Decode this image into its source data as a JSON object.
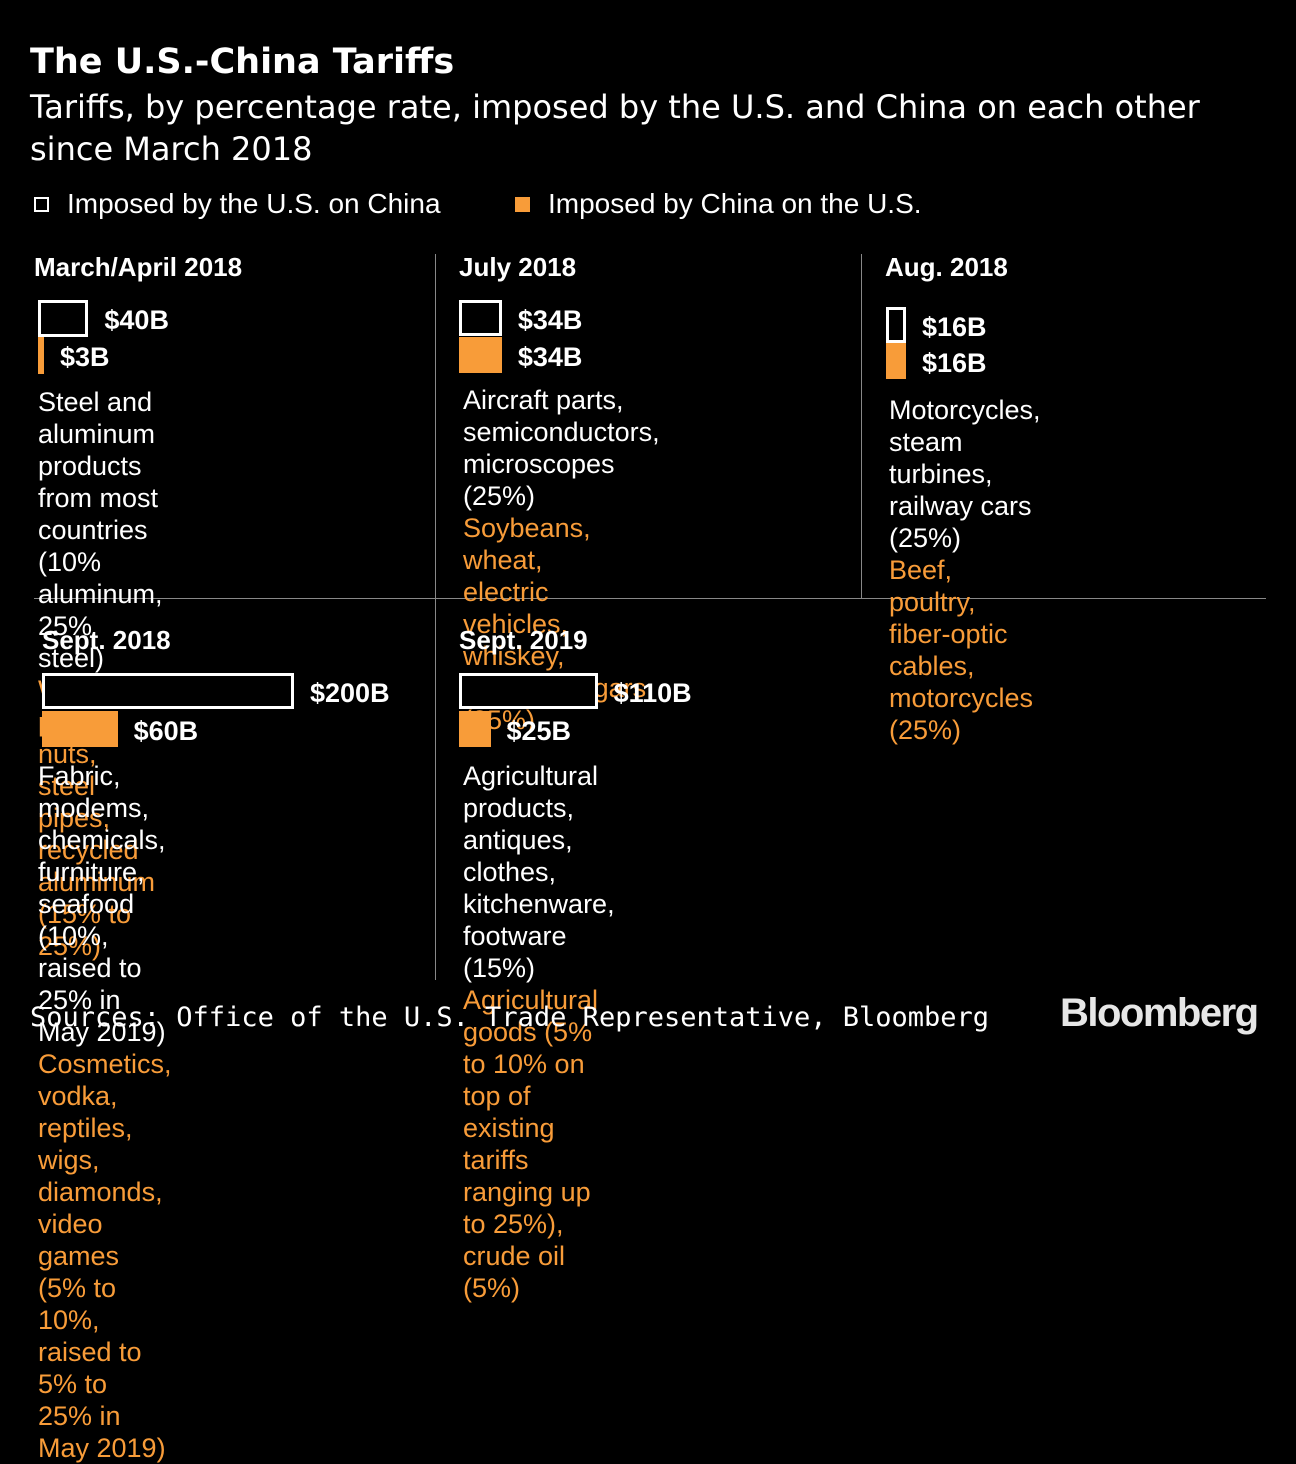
{
  "title": "The U.S.-China Tariffs",
  "subtitle": "Tariffs, by percentage rate, imposed by the U.S. and China on each other since March 2018",
  "legend": {
    "us": "Imposed by the U.S. on China",
    "china": "Imposed by China on the U.S."
  },
  "colors": {
    "us_fill": "#000000",
    "us_outline": "#ffffff",
    "china": "#f89c39",
    "background": "#000000"
  },
  "chart_data": {
    "type": "bar",
    "title": "The U.S.-China Tariffs",
    "units": "billion USD of goods subject to tariffs",
    "series": [
      {
        "name": "Imposed by the U.S. on China",
        "values": [
          40,
          34,
          16,
          200,
          110
        ]
      },
      {
        "name": "Imposed by China on the U.S.",
        "values": [
          3,
          34,
          16,
          60,
          25
        ]
      }
    ],
    "categories": [
      "March/April 2018",
      "July 2018",
      "Aug. 2018",
      "Sept. 2018",
      "Sept. 2019"
    ],
    "panels": [
      {
        "period": "March/April 2018",
        "us_value": 40,
        "us_label": "$40B",
        "china_value": 3,
        "china_label": "$3B",
        "us_text": [
          "Steel and aluminum products",
          "from most countries",
          "(10% aluminum, 25% steel)"
        ],
        "china_text": [
          "Wine, pork, nuts,",
          "steel pipes, recycled",
          "aluminum (15% to 25%)"
        ]
      },
      {
        "period": "July 2018",
        "us_value": 34,
        "us_label": "$34B",
        "china_value": 34,
        "china_label": "$34B",
        "us_text": [
          "Aircraft parts,",
          "semiconductors,",
          "microscopes (25%)"
        ],
        "china_text": [
          "Soybeans, wheat,",
          "electric vehicles, whiskey,",
          "seafood, cigars (25%)"
        ]
      },
      {
        "period": "Aug. 2018",
        "us_value": 16,
        "us_label": "$16B",
        "china_value": 16,
        "china_label": "$16B",
        "us_text": [
          "Motorcycles, steam turbines,",
          "railway cars (25%)"
        ],
        "china_text": [
          "Beef, poultry, fiber-optic",
          "cables, motorcycles (25%)"
        ]
      },
      {
        "period": "Sept. 2018",
        "us_value": 200,
        "us_label": "$200B",
        "china_value": 60,
        "china_label": "$60B",
        "us_text": [
          "Fabric, modems, chemicals,",
          "furniture, seafood (10%,",
          "raised to 25% in May 2019)"
        ],
        "china_text": [
          "Cosmetics, vodka, reptiles,",
          "wigs, diamonds, video games",
          "(5% to 10%, raised to 5% to",
          "25% in May 2019)"
        ]
      },
      {
        "period": "Sept. 2019",
        "us_value": 110,
        "us_label": "$110B",
        "china_value": 25,
        "china_label": "$25B",
        "us_text": [
          "Agricultural products, antiques, clothes, kitchenware,",
          "footware (15%)"
        ],
        "china_text": [
          "Agricultural goods (5% to 10% on top of existing tariffs",
          "ranging up to 25%), crude oil (5%)"
        ]
      }
    ]
  },
  "source": "Sources: Office of the U.S. Trade Representative, Bloomberg",
  "brand": "Bloomberg"
}
